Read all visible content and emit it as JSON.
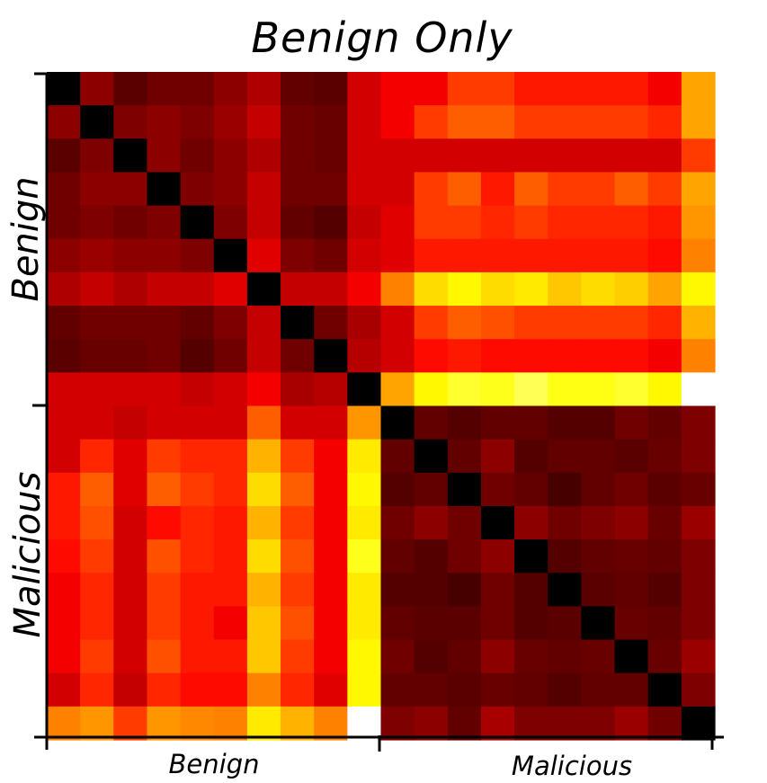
{
  "chart_data": {
    "type": "heatmap",
    "title": "Benign Only",
    "x_groups": [
      "Benign",
      "Malicious"
    ],
    "y_groups": [
      "Benign",
      "Malicious"
    ],
    "group_size": 10,
    "colormap": "hot",
    "values": [
      [
        0.0,
        0.2,
        0.13,
        0.16,
        0.16,
        0.2,
        0.25,
        0.14,
        0.13,
        0.3,
        0.35,
        0.35,
        0.45,
        0.45,
        0.4,
        0.4,
        0.4,
        0.4,
        0.35,
        0.6
      ],
      [
        0.2,
        0.0,
        0.18,
        0.2,
        0.18,
        0.22,
        0.28,
        0.16,
        0.15,
        0.3,
        0.35,
        0.45,
        0.5,
        0.5,
        0.45,
        0.45,
        0.45,
        0.45,
        0.42,
        0.6
      ],
      [
        0.13,
        0.18,
        0.0,
        0.2,
        0.16,
        0.2,
        0.25,
        0.16,
        0.15,
        0.3,
        0.3,
        0.3,
        0.3,
        0.3,
        0.3,
        0.3,
        0.3,
        0.3,
        0.3,
        0.45
      ],
      [
        0.16,
        0.2,
        0.2,
        0.0,
        0.18,
        0.2,
        0.28,
        0.16,
        0.16,
        0.3,
        0.3,
        0.45,
        0.5,
        0.4,
        0.5,
        0.45,
        0.45,
        0.5,
        0.45,
        0.6
      ],
      [
        0.16,
        0.18,
        0.16,
        0.18,
        0.0,
        0.18,
        0.28,
        0.14,
        0.12,
        0.28,
        0.32,
        0.45,
        0.45,
        0.42,
        0.45,
        0.42,
        0.42,
        0.42,
        0.4,
        0.58
      ],
      [
        0.2,
        0.22,
        0.2,
        0.2,
        0.18,
        0.0,
        0.32,
        0.18,
        0.16,
        0.3,
        0.32,
        0.4,
        0.4,
        0.4,
        0.4,
        0.4,
        0.4,
        0.4,
        0.38,
        0.55
      ],
      [
        0.25,
        0.28,
        0.25,
        0.28,
        0.28,
        0.32,
        0.0,
        0.28,
        0.28,
        0.35,
        0.55,
        0.68,
        0.72,
        0.68,
        0.7,
        0.65,
        0.68,
        0.66,
        0.6,
        0.72
      ],
      [
        0.14,
        0.16,
        0.16,
        0.16,
        0.14,
        0.18,
        0.28,
        0.0,
        0.16,
        0.24,
        0.3,
        0.45,
        0.5,
        0.48,
        0.45,
        0.45,
        0.45,
        0.45,
        0.42,
        0.62
      ],
      [
        0.13,
        0.15,
        0.15,
        0.16,
        0.12,
        0.16,
        0.28,
        0.16,
        0.0,
        0.26,
        0.3,
        0.38,
        0.4,
        0.38,
        0.38,
        0.38,
        0.38,
        0.38,
        0.35,
        0.55
      ],
      [
        0.3,
        0.3,
        0.3,
        0.3,
        0.28,
        0.3,
        0.35,
        0.24,
        0.26,
        0.0,
        0.6,
        0.72,
        0.78,
        0.76,
        0.82,
        0.75,
        0.75,
        0.78,
        0.72,
        1.0
      ],
      [
        0.3,
        0.3,
        0.28,
        0.3,
        0.3,
        0.3,
        0.5,
        0.3,
        0.3,
        0.58,
        0.0,
        0.14,
        0.12,
        0.14,
        0.14,
        0.12,
        0.12,
        0.16,
        0.14,
        0.18
      ],
      [
        0.3,
        0.42,
        0.32,
        0.45,
        0.42,
        0.42,
        0.62,
        0.45,
        0.35,
        0.7,
        0.14,
        0.0,
        0.14,
        0.2,
        0.12,
        0.14,
        0.14,
        0.13,
        0.15,
        0.18
      ],
      [
        0.4,
        0.5,
        0.32,
        0.5,
        0.45,
        0.42,
        0.68,
        0.5,
        0.35,
        0.72,
        0.12,
        0.14,
        0.0,
        0.16,
        0.14,
        0.1,
        0.14,
        0.16,
        0.13,
        0.15
      ],
      [
        0.4,
        0.48,
        0.3,
        0.38,
        0.42,
        0.4,
        0.62,
        0.45,
        0.35,
        0.7,
        0.16,
        0.2,
        0.16,
        0.0,
        0.2,
        0.16,
        0.18,
        0.2,
        0.15,
        0.22
      ],
      [
        0.38,
        0.45,
        0.3,
        0.48,
        0.42,
        0.4,
        0.68,
        0.48,
        0.35,
        0.76,
        0.14,
        0.12,
        0.16,
        0.2,
        0.0,
        0.12,
        0.14,
        0.15,
        0.14,
        0.18
      ],
      [
        0.35,
        0.42,
        0.3,
        0.45,
        0.4,
        0.4,
        0.62,
        0.45,
        0.35,
        0.7,
        0.12,
        0.12,
        0.1,
        0.16,
        0.12,
        0.0,
        0.13,
        0.14,
        0.12,
        0.18
      ],
      [
        0.35,
        0.42,
        0.3,
        0.45,
        0.4,
        0.35,
        0.65,
        0.48,
        0.35,
        0.7,
        0.14,
        0.13,
        0.13,
        0.16,
        0.12,
        0.13,
        0.0,
        0.15,
        0.14,
        0.18
      ],
      [
        0.35,
        0.45,
        0.3,
        0.48,
        0.4,
        0.4,
        0.65,
        0.45,
        0.35,
        0.72,
        0.16,
        0.12,
        0.14,
        0.2,
        0.15,
        0.14,
        0.15,
        0.0,
        0.15,
        0.22
      ],
      [
        0.3,
        0.42,
        0.28,
        0.42,
        0.38,
        0.38,
        0.55,
        0.42,
        0.32,
        0.72,
        0.14,
        0.14,
        0.13,
        0.15,
        0.14,
        0.12,
        0.14,
        0.14,
        0.0,
        0.18
      ],
      [
        0.55,
        0.58,
        0.45,
        0.58,
        0.56,
        0.55,
        0.7,
        0.62,
        0.55,
        1.0,
        0.18,
        0.2,
        0.14,
        0.24,
        0.18,
        0.18,
        0.18,
        0.22,
        0.16,
        0.0
      ]
    ]
  }
}
